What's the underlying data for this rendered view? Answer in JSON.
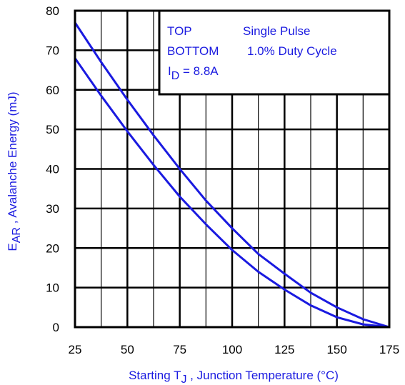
{
  "chart_data": {
    "type": "line",
    "title": "",
    "xlabel": {
      "prefix": "Starting T",
      "sub": "J",
      "suffix": " , Junction Temperature (°C)"
    },
    "ylabel": {
      "prefix": "E",
      "sub": "AR",
      "suffix": " , Avalanche Energy (mJ)"
    },
    "xlim": [
      25,
      175
    ],
    "ylim": [
      0,
      80
    ],
    "xticks": [
      25,
      50,
      75,
      100,
      125,
      150,
      175
    ],
    "yticks": [
      0,
      10,
      20,
      30,
      40,
      50,
      60,
      70,
      80
    ],
    "x_minor_step": 12.5,
    "grid": true,
    "legend": {
      "position": "top-right",
      "line1": {
        "key": "TOP",
        "text": "Single Pulse"
      },
      "line2": {
        "key": "BOTTOM",
        "text": "1.0% Duty Cycle"
      },
      "line3": {
        "prefix": "I",
        "sub": "D",
        "suffix": " = 8.8A"
      }
    },
    "series": [
      {
        "name": "TOP",
        "x": [
          25,
          37.5,
          50,
          62.5,
          75,
          87.5,
          100,
          112.5,
          125,
          137.5,
          150,
          162.5,
          175
        ],
        "y": [
          77,
          67,
          57.5,
          48.5,
          40,
          32,
          25,
          18.5,
          13.5,
          8.7,
          5,
          2,
          0
        ]
      },
      {
        "name": "BOTTOM",
        "x": [
          25,
          37.5,
          50,
          62.5,
          75,
          87.5,
          100,
          112.5,
          125,
          137.5,
          150,
          162.5,
          175
        ],
        "y": [
          68,
          58.5,
          49.5,
          41,
          33,
          26,
          19.5,
          14,
          9.5,
          5.5,
          2.5,
          0.7,
          0
        ]
      }
    ],
    "colors": {
      "series": "#1a1ae0",
      "label_text": "#1a1ae0",
      "grid": "#000000"
    }
  }
}
